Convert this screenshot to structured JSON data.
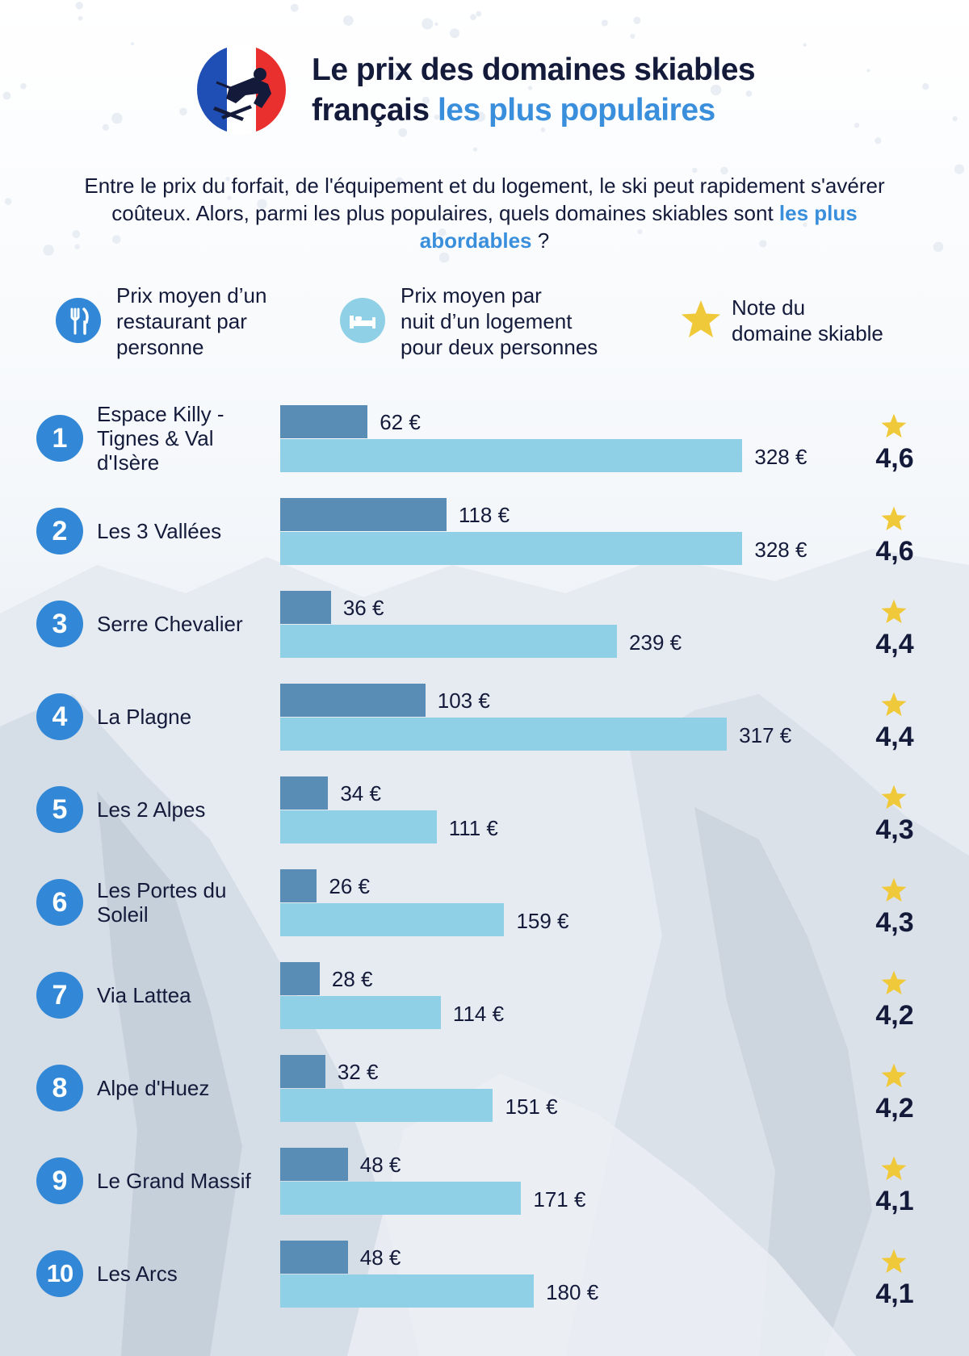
{
  "header": {
    "title_line1": "Le prix des domaines skiables",
    "title_line2_plain": "français",
    "title_line2_accent": "les plus populaires",
    "intro_text": "Entre le prix du forfait, de l'équipement et du logement, le ski peut rapidement s'avérer coûteux. Alors, parmi les plus populaires, quels domaines skiables sont",
    "intro_accent": "les plus abordables",
    "intro_end": "?"
  },
  "legend": {
    "restaurant": "Prix moyen d’un\nrestaurant par\npersonne",
    "lodging": "Prix moyen par\nnuit d’un logement\npour deux personnes",
    "rating": "Note du\ndomaine skiable"
  },
  "icons": {
    "restaurant": "fork-knife-icon",
    "lodging": "bed-icon",
    "rating": "star-icon",
    "logo": "skier-flag-logo"
  },
  "colors": {
    "restaurant_bar": "#5a8db5",
    "lodging_bar": "#8fd0e6",
    "rank_badge": "#3288d6",
    "accent_text": "#3a8fdc",
    "star": "#f0c93a",
    "flag_blue": "#1f4fb5",
    "flag_red": "#ea2f2f"
  },
  "chart_data": {
    "type": "bar",
    "orientation": "horizontal",
    "currency": "€",
    "categories": [
      "Espace Killy - Tignes & Val d'Isère",
      "Les 3 Vallées",
      "Serre Chevalier",
      "La Plagne",
      "Les 2 Alpes",
      "Les Portes du Soleil",
      "Via Lattea",
      "Alpe d'Huez",
      "Le Grand Massif",
      "Les Arcs"
    ],
    "ranks": [
      "1",
      "2",
      "3",
      "4",
      "5",
      "6",
      "7",
      "8",
      "9",
      "10"
    ],
    "series": [
      {
        "values": [
          62,
          118,
          36,
          103,
          34,
          26,
          28,
          32,
          48,
          48
        ]
      },
      {
        "values": [
          328,
          328,
          239,
          317,
          111,
          159,
          114,
          151,
          171,
          180
        ]
      }
    ],
    "value_labels": {
      "restaurant": [
        "62 €",
        "118 €",
        "36 €",
        "103 €",
        "34 €",
        "26 €",
        "28 €",
        "32 €",
        "48 €",
        "48 €"
      ],
      "lodging": [
        "328 €",
        "328 €",
        "239 €",
        "317 €",
        "111 €",
        "159 €",
        "114 €",
        "151 €",
        "171 €",
        "180 €"
      ]
    },
    "ratings": [
      "4,6",
      "4,6",
      "4,4",
      "4,4",
      "4,3",
      "4,3",
      "4,2",
      "4,2",
      "4,1",
      "4,1"
    ],
    "legend_position": "top",
    "grid": false
  }
}
